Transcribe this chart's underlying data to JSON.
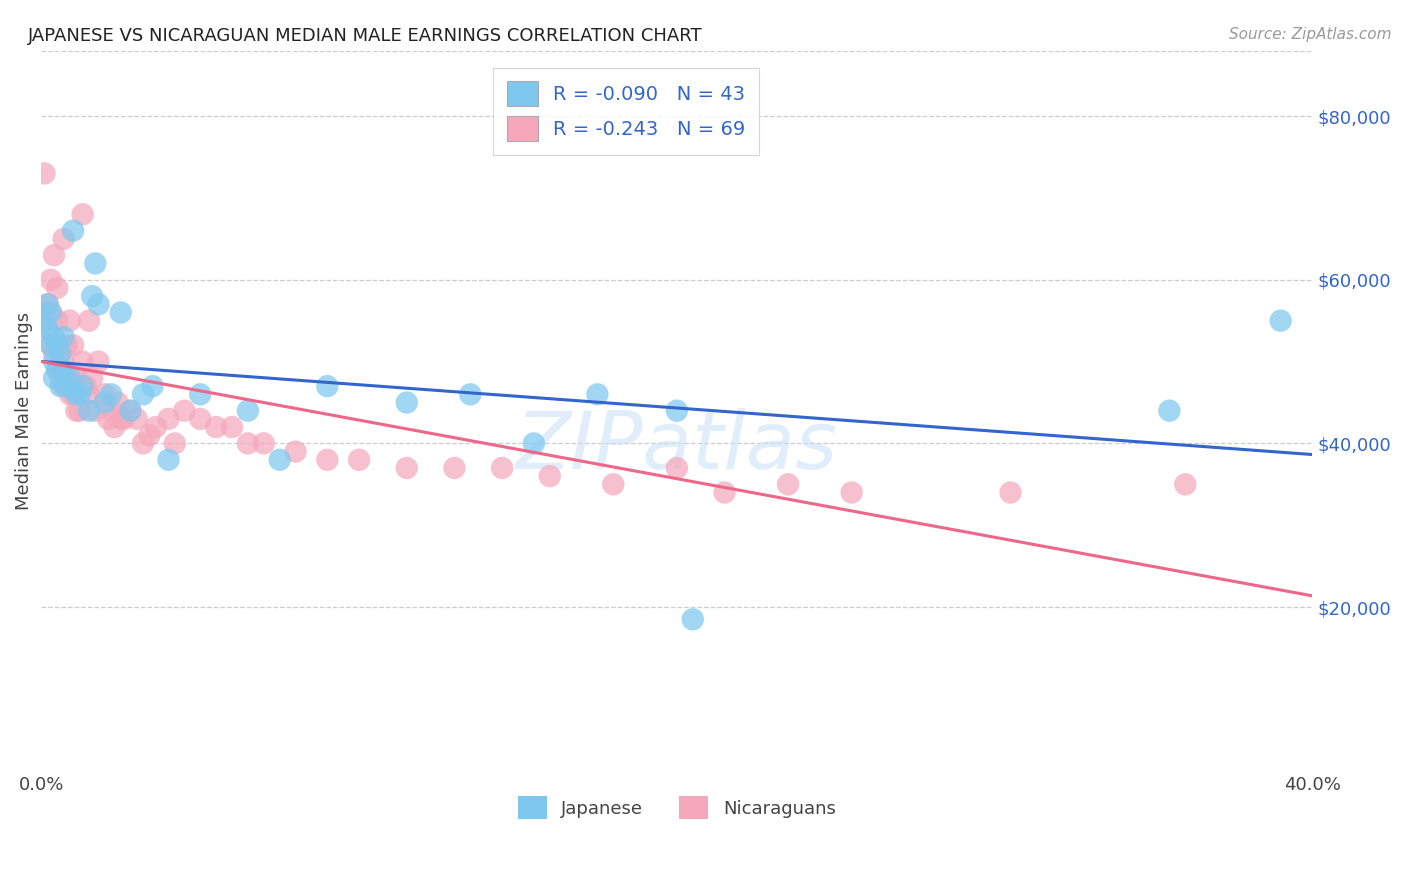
{
  "title": "JAPANESE VS NICARAGUAN MEDIAN MALE EARNINGS CORRELATION CHART",
  "source": "Source: ZipAtlas.com",
  "ylabel": "Median Male Earnings",
  "x_min": 0.0,
  "x_max": 0.4,
  "y_min": 0,
  "y_max": 88000,
  "y_ticks": [
    20000,
    40000,
    60000,
    80000
  ],
  "y_tick_labels": [
    "$20,000",
    "$40,000",
    "$60,000",
    "$80,000"
  ],
  "x_ticks": [
    0.0,
    0.05,
    0.1,
    0.15,
    0.2,
    0.25,
    0.3,
    0.35,
    0.4
  ],
  "x_tick_labels": [
    "0.0%",
    "",
    "",
    "",
    "",
    "",
    "",
    "",
    "40.0%"
  ],
  "watermark": "ZIPatlas",
  "legend_r_japanese": "R = -0.090",
  "legend_n_japanese": "N = 43",
  "legend_r_nicaraguan": "R = -0.243",
  "legend_n_nicaraguan": "N = 69",
  "blue_color": "#7EC8F0",
  "pink_color": "#F5A8BB",
  "line_blue": "#3366CC",
  "line_pink": "#EE6688",
  "japanese_x": [
    0.001,
    0.002,
    0.002,
    0.003,
    0.003,
    0.004,
    0.004,
    0.004,
    0.005,
    0.005,
    0.006,
    0.006,
    0.007,
    0.007,
    0.008,
    0.009,
    0.01,
    0.011,
    0.012,
    0.013,
    0.015,
    0.016,
    0.017,
    0.018,
    0.02,
    0.022,
    0.025,
    0.028,
    0.032,
    0.035,
    0.04,
    0.05,
    0.065,
    0.075,
    0.09,
    0.115,
    0.135,
    0.155,
    0.175,
    0.2,
    0.205,
    0.355,
    0.39
  ],
  "japanese_y": [
    55000,
    57000,
    54000,
    52000,
    56000,
    50000,
    53000,
    48000,
    52000,
    49000,
    47000,
    51000,
    49000,
    53000,
    47000,
    48000,
    66000,
    46000,
    46000,
    47000,
    44000,
    58000,
    62000,
    57000,
    45000,
    46000,
    56000,
    44000,
    46000,
    47000,
    38000,
    46000,
    44000,
    38000,
    47000,
    45000,
    46000,
    40000,
    46000,
    44000,
    18500,
    44000,
    55000
  ],
  "nicaraguan_x": [
    0.001,
    0.001,
    0.002,
    0.002,
    0.003,
    0.003,
    0.003,
    0.004,
    0.004,
    0.005,
    0.005,
    0.005,
    0.006,
    0.006,
    0.007,
    0.007,
    0.007,
    0.008,
    0.008,
    0.009,
    0.009,
    0.01,
    0.01,
    0.011,
    0.011,
    0.012,
    0.012,
    0.013,
    0.013,
    0.014,
    0.015,
    0.015,
    0.016,
    0.017,
    0.018,
    0.02,
    0.021,
    0.022,
    0.023,
    0.024,
    0.025,
    0.026,
    0.028,
    0.03,
    0.032,
    0.034,
    0.036,
    0.04,
    0.042,
    0.045,
    0.05,
    0.055,
    0.06,
    0.065,
    0.07,
    0.08,
    0.09,
    0.1,
    0.115,
    0.13,
    0.145,
    0.16,
    0.18,
    0.2,
    0.215,
    0.235,
    0.255,
    0.305,
    0.36
  ],
  "nicaraguan_y": [
    73000,
    56000,
    57000,
    54000,
    60000,
    56000,
    52000,
    63000,
    51000,
    59000,
    55000,
    49000,
    51000,
    48000,
    65000,
    50000,
    47000,
    52000,
    48000,
    55000,
    46000,
    52000,
    46000,
    48000,
    44000,
    47000,
    44000,
    68000,
    50000,
    47000,
    55000,
    46000,
    48000,
    44000,
    50000,
    46000,
    43000,
    44000,
    42000,
    45000,
    43000,
    43000,
    44000,
    43000,
    40000,
    41000,
    42000,
    43000,
    40000,
    44000,
    43000,
    42000,
    42000,
    40000,
    40000,
    39000,
    38000,
    38000,
    37000,
    37000,
    37000,
    36000,
    35000,
    37000,
    34000,
    35000,
    34000,
    34000,
    35000
  ]
}
